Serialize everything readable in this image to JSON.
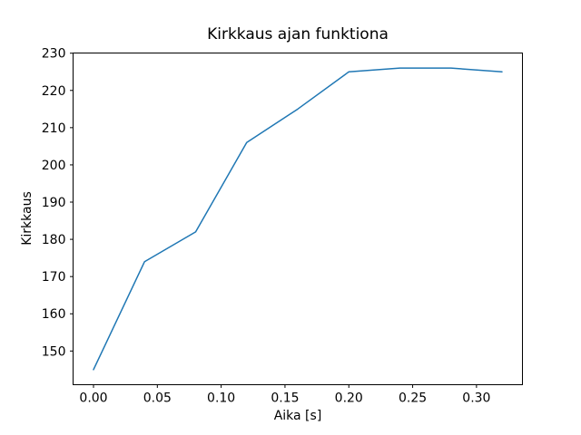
{
  "figure": {
    "background": "#ffffff",
    "text_color": "#000000",
    "axis_color": "#000000"
  },
  "chart_data": {
    "type": "line",
    "title": "Kirkkaus ajan funktiona",
    "xlabel": "Aika [s]",
    "ylabel": "Kirkkaus",
    "x": [
      0.0,
      0.04,
      0.08,
      0.12,
      0.16,
      0.2,
      0.24,
      0.28,
      0.32
    ],
    "y": [
      145,
      174,
      182,
      206,
      215,
      225,
      226,
      226,
      225
    ],
    "series_name": "Kirkkaus",
    "xlim": [
      -0.016,
      0.336
    ],
    "ylim": [
      140.95,
      230.05
    ],
    "x_ticks": [
      0.0,
      0.05,
      0.1,
      0.15,
      0.2,
      0.25,
      0.3
    ],
    "x_tick_labels": [
      "0.00",
      "0.05",
      "0.10",
      "0.15",
      "0.20",
      "0.25",
      "0.30"
    ],
    "y_ticks": [
      150,
      160,
      170,
      180,
      190,
      200,
      210,
      220,
      230
    ],
    "y_tick_labels": [
      "150",
      "160",
      "170",
      "180",
      "190",
      "200",
      "210",
      "220",
      "230"
    ],
    "line_color": "#1f77b4",
    "line_width": 1.5,
    "grid": false,
    "legend": null
  }
}
